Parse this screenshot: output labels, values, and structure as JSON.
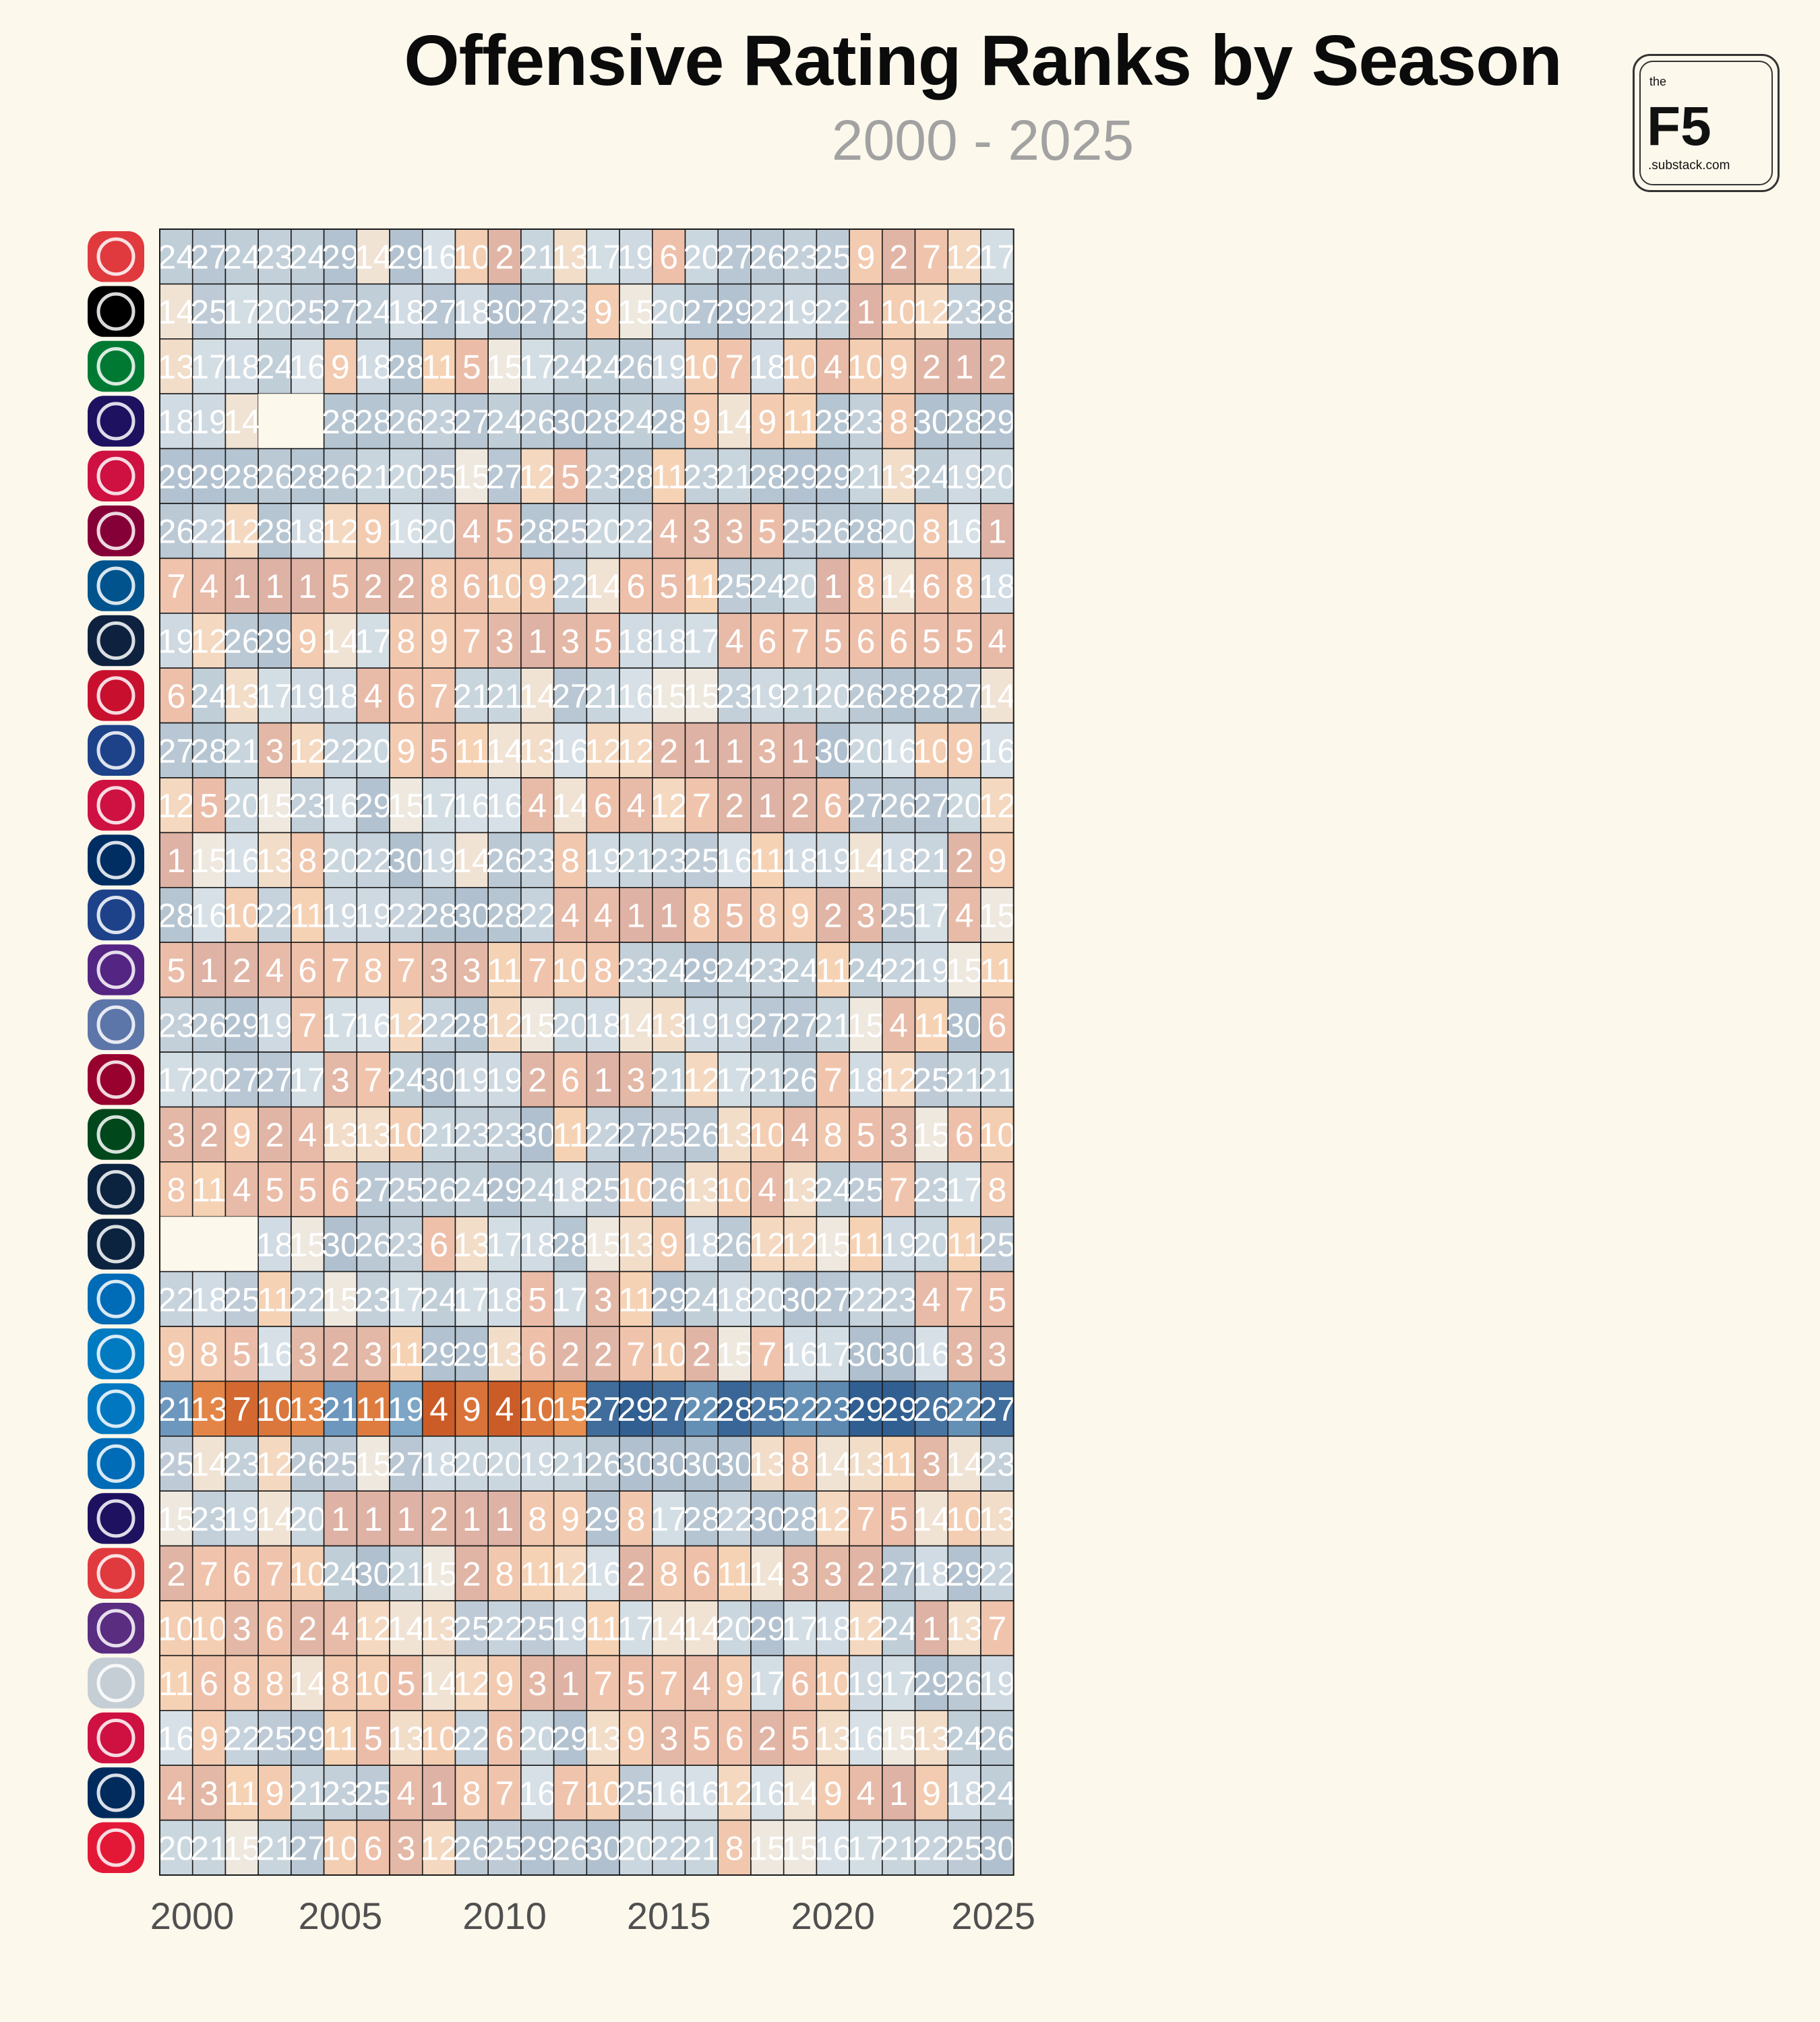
{
  "header": {
    "title": "Offensive Rating Ranks by Season",
    "subtitle": "2000 - 2025"
  },
  "logo": {
    "the": "the",
    "brand": "F5",
    "suffix": ".substack.com"
  },
  "chart_data": {
    "type": "heatmap",
    "title": "Offensive Rating Ranks by Season",
    "subtitle": "2000 - 2025",
    "x": [
      2000,
      2001,
      2002,
      2003,
      2004,
      2005,
      2006,
      2007,
      2008,
      2009,
      2010,
      2011,
      2012,
      2013,
      2014,
      2015,
      2016,
      2017,
      2018,
      2019,
      2020,
      2021,
      2022,
      2023,
      2024,
      2025
    ],
    "x_ticks": [
      2000,
      2005,
      2010,
      2015,
      2020,
      2025
    ],
    "highlight_row_index": 21,
    "rows": [
      {
        "team_icon": "hawks-logo-icon",
        "color": "#e03a3e",
        "values": [
          24,
          27,
          24,
          23,
          24,
          29,
          14,
          29,
          16,
          10,
          2,
          21,
          13,
          17,
          19,
          6,
          20,
          27,
          26,
          23,
          25,
          9,
          2,
          7,
          12,
          17
        ]
      },
      {
        "team_icon": "nets-logo-icon",
        "color": "#000000",
        "values": [
          14,
          25,
          17,
          20,
          25,
          27,
          24,
          18,
          27,
          18,
          30,
          27,
          23,
          9,
          15,
          20,
          27,
          29,
          22,
          19,
          22,
          1,
          10,
          12,
          23,
          28
        ]
      },
      {
        "team_icon": "celtics-logo-icon",
        "color": "#007a33",
        "values": [
          13,
          17,
          18,
          24,
          16,
          9,
          18,
          28,
          11,
          5,
          15,
          17,
          24,
          24,
          26,
          19,
          10,
          7,
          18,
          10,
          4,
          10,
          9,
          2,
          1,
          2
        ]
      },
      {
        "team_icon": "hornets-logo-icon",
        "color": "#1d1160",
        "values": [
          18,
          19,
          14,
          null,
          null,
          28,
          28,
          26,
          23,
          27,
          24,
          26,
          30,
          28,
          24,
          28,
          9,
          14,
          9,
          11,
          28,
          23,
          8,
          30,
          28,
          29
        ]
      },
      {
        "team_icon": "bulls-logo-icon",
        "color": "#ce1141",
        "values": [
          29,
          29,
          28,
          26,
          28,
          26,
          21,
          20,
          25,
          15,
          27,
          12,
          5,
          23,
          28,
          11,
          23,
          21,
          28,
          29,
          29,
          21,
          13,
          24,
          19,
          20
        ]
      },
      {
        "team_icon": "cavaliers-logo-icon",
        "color": "#860038",
        "values": [
          26,
          22,
          12,
          28,
          18,
          12,
          9,
          16,
          20,
          4,
          5,
          28,
          25,
          20,
          22,
          4,
          3,
          3,
          5,
          25,
          26,
          28,
          20,
          8,
          16,
          1
        ]
      },
      {
        "team_icon": "mavericks-logo-icon",
        "color": "#00538c",
        "values": [
          7,
          4,
          1,
          1,
          1,
          5,
          2,
          2,
          8,
          6,
          10,
          9,
          22,
          14,
          6,
          5,
          11,
          25,
          24,
          20,
          1,
          8,
          14,
          6,
          8,
          18
        ]
      },
      {
        "team_icon": "nuggets-logo-icon",
        "color": "#0e2240",
        "values": [
          19,
          12,
          26,
          29,
          9,
          14,
          17,
          8,
          9,
          7,
          3,
          1,
          3,
          5,
          18,
          18,
          17,
          4,
          6,
          7,
          5,
          6,
          6,
          5,
          5,
          4
        ]
      },
      {
        "team_icon": "pistons-logo-icon",
        "color": "#c8102e",
        "values": [
          6,
          24,
          13,
          17,
          19,
          18,
          4,
          6,
          7,
          21,
          21,
          14,
          27,
          21,
          16,
          15,
          15,
          23,
          19,
          21,
          20,
          26,
          28,
          28,
          27,
          14
        ]
      },
      {
        "team_icon": "warriors-logo-icon",
        "color": "#1d428a",
        "values": [
          27,
          28,
          21,
          3,
          12,
          22,
          20,
          9,
          5,
          11,
          14,
          13,
          16,
          12,
          12,
          2,
          1,
          1,
          3,
          1,
          30,
          20,
          16,
          10,
          9,
          16
        ]
      },
      {
        "team_icon": "rockets-logo-icon",
        "color": "#ce1141",
        "values": [
          12,
          5,
          20,
          15,
          23,
          16,
          29,
          15,
          17,
          16,
          16,
          4,
          14,
          6,
          4,
          12,
          7,
          2,
          1,
          2,
          6,
          27,
          26,
          27,
          20,
          12
        ]
      },
      {
        "team_icon": "pacers-logo-icon",
        "color": "#002d62",
        "values": [
          1,
          15,
          16,
          13,
          8,
          20,
          22,
          30,
          19,
          14,
          26,
          23,
          8,
          19,
          21,
          23,
          25,
          16,
          11,
          18,
          19,
          14,
          18,
          21,
          2,
          9
        ]
      },
      {
        "team_icon": "clippers-logo-icon",
        "color": "#1d428a",
        "values": [
          28,
          16,
          10,
          22,
          11,
          19,
          19,
          22,
          28,
          30,
          28,
          22,
          4,
          4,
          1,
          1,
          8,
          5,
          8,
          9,
          2,
          3,
          25,
          17,
          4,
          15
        ]
      },
      {
        "team_icon": "lakers-logo-icon",
        "color": "#552583",
        "values": [
          5,
          1,
          2,
          4,
          6,
          7,
          8,
          7,
          3,
          3,
          11,
          7,
          10,
          8,
          23,
          24,
          29,
          24,
          23,
          24,
          11,
          24,
          22,
          19,
          15,
          11
        ]
      },
      {
        "team_icon": "grizzlies-logo-icon",
        "color": "#5d76a9",
        "values": [
          23,
          26,
          29,
          19,
          7,
          17,
          16,
          12,
          22,
          28,
          12,
          15,
          20,
          18,
          14,
          13,
          19,
          19,
          27,
          27,
          21,
          15,
          4,
          11,
          30,
          6
        ]
      },
      {
        "team_icon": "heat-logo-icon",
        "color": "#98002e",
        "values": [
          17,
          20,
          27,
          27,
          17,
          3,
          7,
          24,
          30,
          19,
          19,
          2,
          6,
          1,
          3,
          21,
          12,
          17,
          21,
          26,
          7,
          18,
          12,
          25,
          21,
          21
        ]
      },
      {
        "team_icon": "bucks-logo-icon",
        "color": "#00471b",
        "values": [
          3,
          2,
          9,
          2,
          4,
          13,
          13,
          10,
          21,
          23,
          23,
          30,
          11,
          22,
          27,
          25,
          26,
          13,
          10,
          4,
          8,
          5,
          3,
          15,
          6,
          10
        ]
      },
      {
        "team_icon": "timberwolves-logo-icon",
        "color": "#0c2340",
        "values": [
          8,
          11,
          4,
          5,
          5,
          6,
          27,
          25,
          26,
          24,
          29,
          24,
          18,
          25,
          10,
          26,
          13,
          10,
          4,
          13,
          24,
          25,
          7,
          23,
          17,
          8
        ]
      },
      {
        "team_icon": "pelicans-logo-icon",
        "color": "#0c2340",
        "values": [
          null,
          null,
          null,
          18,
          15,
          30,
          26,
          23,
          6,
          13,
          17,
          18,
          28,
          15,
          13,
          9,
          18,
          26,
          12,
          12,
          15,
          11,
          19,
          20,
          11,
          25
        ]
      },
      {
        "team_icon": "knicks-logo-icon",
        "color": "#006bb6",
        "values": [
          22,
          18,
          25,
          11,
          22,
          15,
          23,
          17,
          24,
          17,
          18,
          5,
          17,
          3,
          11,
          29,
          24,
          18,
          20,
          30,
          27,
          22,
          23,
          4,
          7,
          5
        ]
      },
      {
        "team_icon": "thunder-logo-icon",
        "color": "#007ac1",
        "values": [
          9,
          8,
          5,
          16,
          3,
          2,
          3,
          11,
          29,
          29,
          13,
          6,
          2,
          2,
          7,
          10,
          2,
          15,
          7,
          16,
          17,
          30,
          30,
          16,
          3,
          3
        ]
      },
      {
        "team_icon": "magic-logo-icon",
        "color": "#0077c0",
        "values": [
          21,
          13,
          7,
          10,
          13,
          21,
          11,
          19,
          4,
          9,
          4,
          10,
          15,
          27,
          29,
          27,
          22,
          28,
          25,
          22,
          23,
          29,
          29,
          26,
          22,
          27
        ]
      },
      {
        "team_icon": "76ers-logo-icon",
        "color": "#006bb6",
        "values": [
          25,
          14,
          23,
          12,
          26,
          25,
          15,
          27,
          18,
          20,
          20,
          19,
          21,
          26,
          30,
          30,
          30,
          30,
          13,
          8,
          14,
          13,
          11,
          3,
          14,
          23
        ]
      },
      {
        "team_icon": "suns-logo-icon",
        "color": "#1d1160",
        "values": [
          15,
          23,
          19,
          14,
          20,
          1,
          1,
          1,
          2,
          1,
          1,
          8,
          9,
          29,
          8,
          17,
          28,
          22,
          30,
          28,
          12,
          7,
          5,
          14,
          10,
          13
        ]
      },
      {
        "team_icon": "trail-blazers-logo-icon",
        "color": "#e03a3e",
        "values": [
          2,
          7,
          6,
          7,
          10,
          24,
          30,
          21,
          15,
          2,
          8,
          11,
          12,
          16,
          2,
          8,
          6,
          11,
          14,
          3,
          3,
          2,
          27,
          18,
          29,
          22
        ]
      },
      {
        "team_icon": "kings-logo-icon",
        "color": "#5a2d81",
        "values": [
          10,
          10,
          3,
          6,
          2,
          4,
          12,
          14,
          13,
          25,
          22,
          25,
          19,
          11,
          17,
          14,
          14,
          20,
          29,
          17,
          18,
          12,
          24,
          1,
          13,
          7
        ]
      },
      {
        "team_icon": "spurs-logo-icon",
        "color": "#c4ced4",
        "values": [
          11,
          6,
          8,
          8,
          14,
          8,
          10,
          5,
          14,
          12,
          9,
          3,
          1,
          7,
          5,
          7,
          4,
          9,
          17,
          6,
          10,
          19,
          17,
          29,
          26,
          19
        ]
      },
      {
        "team_icon": "raptors-logo-icon",
        "color": "#ce1141",
        "values": [
          16,
          9,
          22,
          25,
          29,
          11,
          5,
          13,
          10,
          22,
          6,
          20,
          29,
          13,
          9,
          3,
          5,
          6,
          2,
          5,
          13,
          16,
          15,
          13,
          24,
          26
        ]
      },
      {
        "team_icon": "jazz-logo-icon",
        "color": "#002b5c",
        "values": [
          4,
          3,
          11,
          9,
          21,
          23,
          25,
          4,
          1,
          8,
          7,
          16,
          7,
          10,
          25,
          16,
          16,
          12,
          16,
          14,
          9,
          4,
          1,
          9,
          18,
          24
        ]
      },
      {
        "team_icon": "wizards-logo-icon",
        "color": "#e31837",
        "values": [
          20,
          21,
          15,
          21,
          27,
          10,
          6,
          3,
          12,
          26,
          25,
          29,
          26,
          30,
          20,
          22,
          21,
          8,
          15,
          15,
          16,
          17,
          21,
          22,
          25,
          30
        ]
      }
    ]
  }
}
